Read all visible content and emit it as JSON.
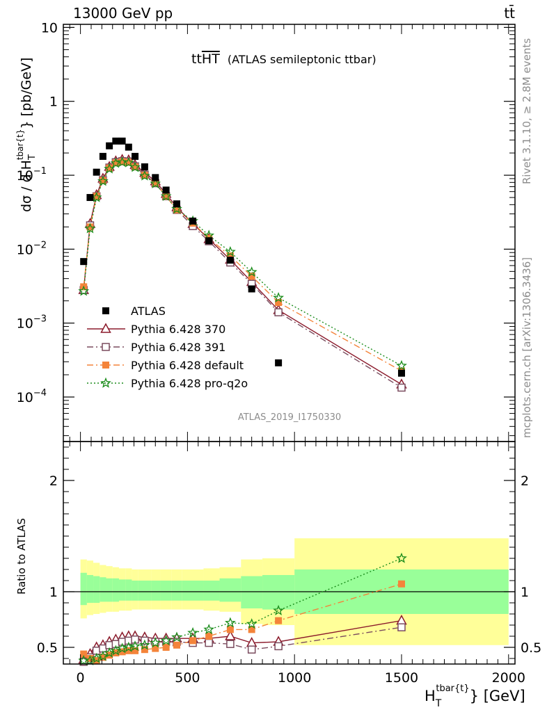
{
  "header": {
    "left": "13000 GeV pp",
    "right": "tt̄"
  },
  "side_labels": {
    "rivet": "Rivet 3.1.10, ≥ 2.8M events",
    "mcplots": "mcplots.cern.ch [arXiv:1306.3436]"
  },
  "chart_data": [
    {
      "type": "scatter",
      "title_main": "tt",
      "title_overline": "HT",
      "title_suffix": "(ATLAS semileptonic ttbar)",
      "analysis_id": "ATLAS_2019_I1750330",
      "ylabel": "dσ / d H",
      "ylabel_sub": "T",
      "ylabel_sup": "tbar{t}",
      "ylabel_tail": "} [pb/GeV]",
      "yscale": "log",
      "xlim": [
        -80,
        2030
      ],
      "ylim": [
        2.5e-05,
        11
      ],
      "yticks": [
        {
          "value": 10,
          "base": "10",
          "exp": ""
        },
        {
          "value": 1,
          "base": "1",
          "exp": ""
        },
        {
          "value": 0.1,
          "base": "10",
          "exp": "−1"
        },
        {
          "value": 0.01,
          "base": "10",
          "exp": "−2"
        },
        {
          "value": 0.001,
          "base": "10",
          "exp": "−3"
        },
        {
          "value": 0.0001,
          "base": "10",
          "exp": "−4"
        }
      ],
      "legend_position": "bottom-left",
      "x": [
        15,
        45,
        75,
        105,
        135,
        165,
        195,
        225,
        255,
        300,
        350,
        400,
        450,
        525,
        600,
        700,
        800,
        925,
        1500
      ],
      "series": [
        {
          "name": "ATLAS",
          "color": "#000000",
          "marker": "square",
          "line": "none",
          "values": [
            0.0068,
            0.05,
            0.11,
            0.18,
            0.25,
            0.29,
            0.29,
            0.24,
            0.18,
            0.13,
            0.093,
            0.063,
            0.041,
            0.024,
            0.013,
            0.0071,
            0.0029,
            0.00029,
            0.00021
          ]
        },
        {
          "name": "Pythia 6.428 370",
          "color": "#8b1a2b",
          "marker": "triangle-open",
          "line": "solid",
          "values": [
            0.0028,
            0.022,
            0.054,
            0.09,
            0.13,
            0.155,
            0.162,
            0.16,
            0.138,
            0.108,
            0.083,
            0.056,
            0.037,
            0.022,
            0.0137,
            0.0072,
            0.0036,
            0.0015,
            0.000148
          ]
        },
        {
          "name": "Pythia 6.428 391",
          "color": "#7a4b5e",
          "marker": "square-open",
          "line": "dashdot",
          "values": [
            0.0028,
            0.021,
            0.052,
            0.086,
            0.127,
            0.15,
            0.155,
            0.153,
            0.132,
            0.102,
            0.078,
            0.052,
            0.034,
            0.0205,
            0.0128,
            0.0066,
            0.0034,
            0.0014,
            0.000134
          ]
        },
        {
          "name": "Pythia 6.428 default",
          "color": "#f4843a",
          "marker": "square",
          "line": "dashdot",
          "values": [
            0.0031,
            0.02,
            0.052,
            0.085,
            0.125,
            0.147,
            0.152,
            0.15,
            0.13,
            0.1,
            0.078,
            0.052,
            0.034,
            0.0225,
            0.014,
            0.0081,
            0.0043,
            0.0019,
            0.000225
          ]
        },
        {
          "name": "Pythia 6.428 pro-q2o",
          "color": "#1a8c1a",
          "marker": "star",
          "line": "dotted",
          "values": [
            0.0027,
            0.019,
            0.05,
            0.083,
            0.122,
            0.145,
            0.15,
            0.148,
            0.128,
            0.098,
            0.077,
            0.052,
            0.035,
            0.024,
            0.0153,
            0.0092,
            0.0049,
            0.0022,
            0.000265
          ]
        }
      ]
    },
    {
      "type": "scatter",
      "ylabel": "Ratio to ATLAS",
      "xlabel": "H",
      "xlabel_sub": "T",
      "xlabel_sup": "tbar{t}",
      "xlabel_tail": "} [GeV]",
      "xlim": [
        -80,
        2030
      ],
      "ylim": [
        0.35,
        2.35
      ],
      "xticks": [
        0,
        500,
        1000,
        1500,
        2000
      ],
      "yticks_left": [
        0.5,
        1,
        2
      ],
      "yticks_right": [
        0.5,
        1,
        2
      ],
      "reference_line": 1,
      "bands": [
        {
          "x0": 0,
          "x1": 30,
          "green": [
            0.88,
            1.17
          ],
          "yellow": [
            0.76,
            1.29
          ]
        },
        {
          "x0": 30,
          "x1": 60,
          "green": [
            0.9,
            1.15
          ],
          "yellow": [
            0.79,
            1.28
          ]
        },
        {
          "x0": 60,
          "x1": 90,
          "green": [
            0.9,
            1.14
          ],
          "yellow": [
            0.8,
            1.26
          ]
        },
        {
          "x0": 90,
          "x1": 120,
          "green": [
            0.91,
            1.13
          ],
          "yellow": [
            0.81,
            1.24
          ]
        },
        {
          "x0": 120,
          "x1": 150,
          "green": [
            0.91,
            1.12
          ],
          "yellow": [
            0.82,
            1.23
          ]
        },
        {
          "x0": 150,
          "x1": 180,
          "green": [
            0.91,
            1.12
          ],
          "yellow": [
            0.82,
            1.22
          ]
        },
        {
          "x0": 180,
          "x1": 210,
          "green": [
            0.92,
            1.11
          ],
          "yellow": [
            0.83,
            1.21
          ]
        },
        {
          "x0": 210,
          "x1": 240,
          "green": [
            0.92,
            1.11
          ],
          "yellow": [
            0.83,
            1.21
          ]
        },
        {
          "x0": 240,
          "x1": 270,
          "green": [
            0.92,
            1.1
          ],
          "yellow": [
            0.84,
            1.2
          ]
        },
        {
          "x0": 270,
          "x1": 330,
          "green": [
            0.92,
            1.1
          ],
          "yellow": [
            0.84,
            1.2
          ]
        },
        {
          "x0": 330,
          "x1": 375,
          "green": [
            0.92,
            1.1
          ],
          "yellow": [
            0.84,
            1.2
          ]
        },
        {
          "x0": 375,
          "x1": 425,
          "green": [
            0.92,
            1.1
          ],
          "yellow": [
            0.84,
            1.2
          ]
        },
        {
          "x0": 425,
          "x1": 475,
          "green": [
            0.92,
            1.1
          ],
          "yellow": [
            0.84,
            1.2
          ]
        },
        {
          "x0": 475,
          "x1": 575,
          "green": [
            0.92,
            1.1
          ],
          "yellow": [
            0.84,
            1.2
          ]
        },
        {
          "x0": 575,
          "x1": 650,
          "green": [
            0.92,
            1.1
          ],
          "yellow": [
            0.83,
            1.21
          ]
        },
        {
          "x0": 650,
          "x1": 750,
          "green": [
            0.91,
            1.12
          ],
          "yellow": [
            0.82,
            1.22
          ]
        },
        {
          "x0": 750,
          "x1": 850,
          "green": [
            0.85,
            1.14
          ],
          "yellow": [
            0.71,
            1.29
          ]
        },
        {
          "x0": 850,
          "x1": 1000,
          "green": [
            0.84,
            1.15
          ],
          "yellow": [
            0.7,
            1.3
          ]
        },
        {
          "x0": 1000,
          "x1": 2000,
          "green": [
            0.8,
            1.2
          ],
          "yellow": [
            0.52,
            1.48
          ]
        }
      ],
      "x": [
        15,
        45,
        75,
        105,
        135,
        165,
        195,
        225,
        255,
        300,
        350,
        400,
        450,
        525,
        600,
        700,
        800,
        925,
        1500
      ],
      "series": [
        {
          "name": "Pythia 6.428 370",
          "color": "#8b1a2b",
          "marker": "triangle-open",
          "line": "solid",
          "values": [
            0.39,
            0.44,
            0.5,
            0.52,
            0.55,
            0.57,
            0.59,
            0.6,
            0.6,
            0.59,
            0.58,
            0.58,
            0.58,
            0.58,
            0.58,
            0.6,
            0.54,
            0.55,
            0.74
          ]
        },
        {
          "name": "Pythia 6.428 391",
          "color": "#7a4b5e",
          "marker": "square-open",
          "line": "dashdot",
          "values": [
            0.37,
            0.41,
            0.47,
            0.49,
            0.52,
            0.53,
            0.55,
            0.56,
            0.57,
            0.56,
            0.55,
            0.55,
            0.55,
            0.54,
            0.54,
            0.53,
            0.48,
            0.51,
            0.68
          ]
        },
        {
          "name": "Pythia 6.428 default",
          "color": "#f4843a",
          "marker": "square",
          "line": "dashdot",
          "values": [
            0.44,
            0.4,
            0.38,
            0.41,
            0.43,
            0.45,
            0.46,
            0.47,
            0.47,
            0.48,
            0.49,
            0.5,
            0.52,
            0.56,
            0.6,
            0.66,
            0.66,
            0.74,
            1.07
          ]
        },
        {
          "name": "Pythia 6.428 pro-q2o",
          "color": "#1a8c1a",
          "marker": "star",
          "line": "dotted",
          "values": [
            0.38,
            0.38,
            0.4,
            0.42,
            0.45,
            0.47,
            0.49,
            0.5,
            0.51,
            0.52,
            0.54,
            0.56,
            0.59,
            0.63,
            0.66,
            0.72,
            0.71,
            0.83,
            1.3
          ]
        }
      ]
    }
  ]
}
